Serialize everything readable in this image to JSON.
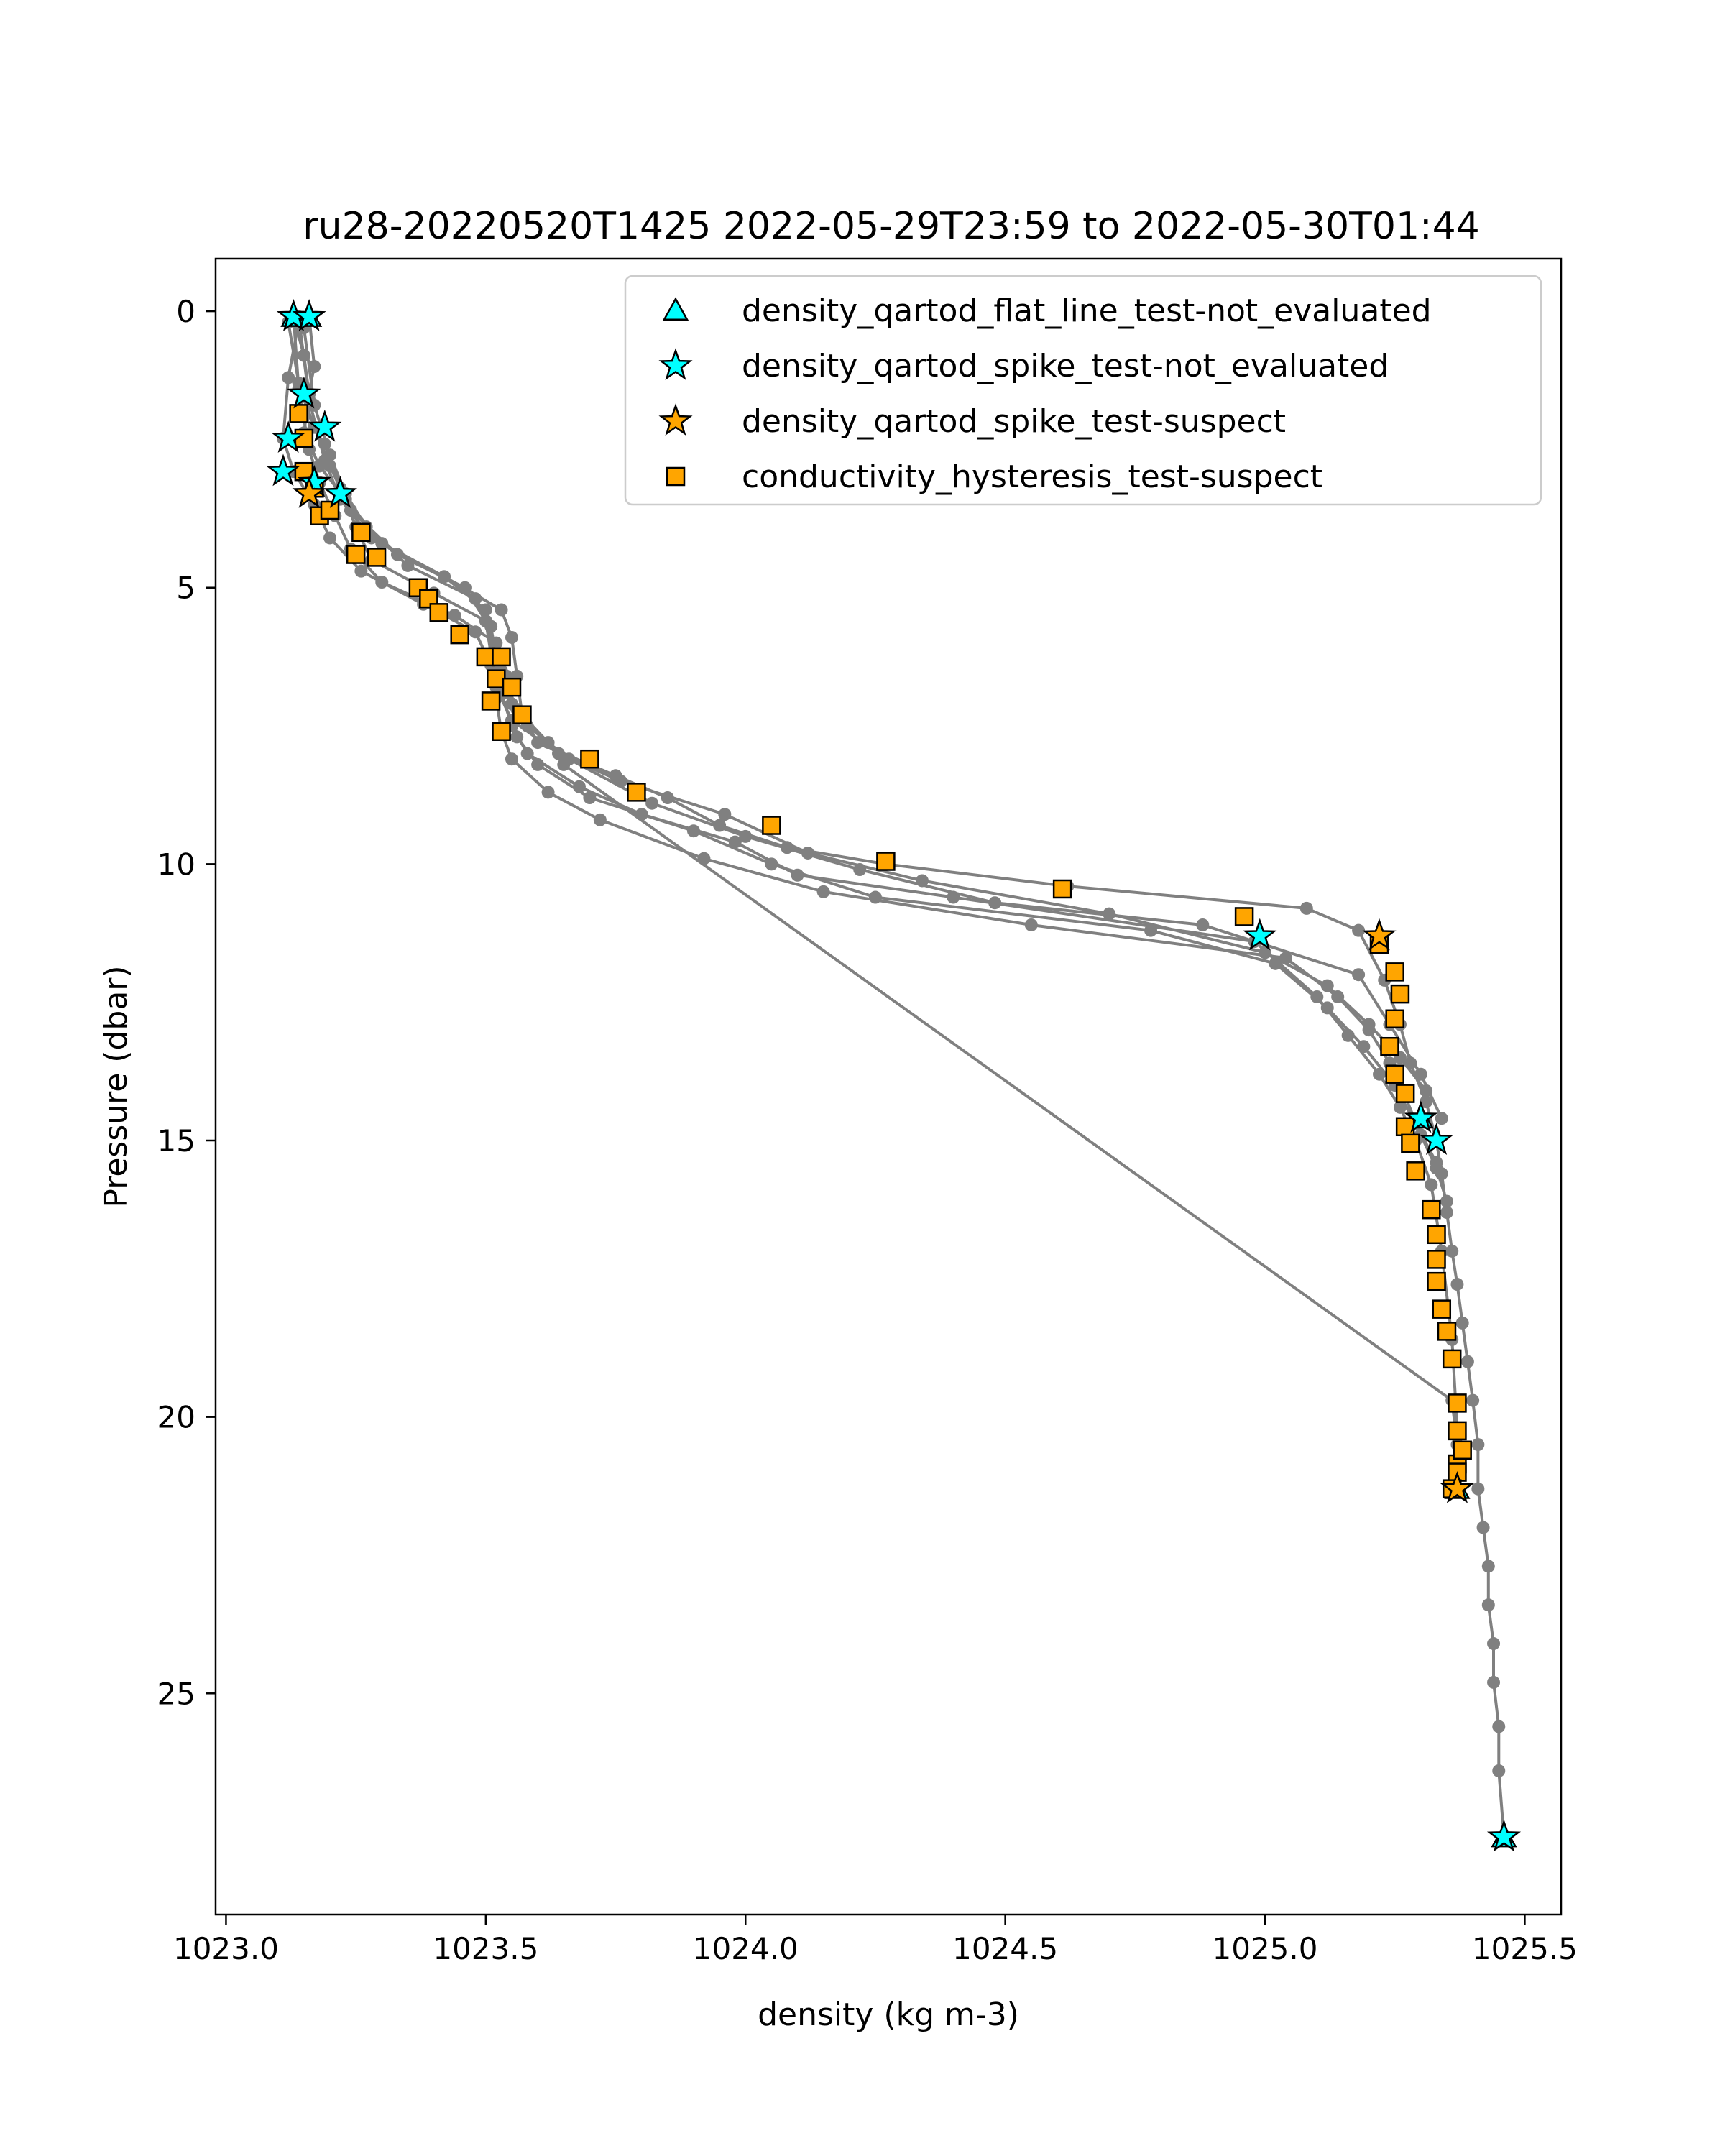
{
  "chart_data": {
    "type": "scatter",
    "title": "ru28-20220520T1425 2022-05-29T23:59 to 2022-05-30T01:44",
    "xlabel": "density (kg m-3)",
    "ylabel": "Pressure (dbar)",
    "xlim": [
      1022.98,
      1025.57
    ],
    "ylim": [
      29.0,
      -0.95
    ],
    "y_inverted": true,
    "grid": false,
    "legend_position": "top-right",
    "x_ticks": [
      1023.0,
      1023.5,
      1024.0,
      1024.5,
      1025.0,
      1025.5
    ],
    "x_tick_labels": [
      "1023.0",
      "1023.5",
      "1024.0",
      "1024.5",
      "1025.0",
      "1025.5"
    ],
    "y_ticks": [
      0,
      5,
      10,
      15,
      20,
      25
    ],
    "y_tick_labels": [
      "0",
      "5",
      "10",
      "15",
      "20",
      "25"
    ],
    "colors": {
      "profile_line": "#808080",
      "flat_line_not_evaluated": "#00FFFF",
      "spike_not_evaluated": "#00FFFF",
      "spike_suspect": "#FFA500",
      "hysteresis_suspect": "#FFA500",
      "marker_edge": "#000000"
    },
    "profiles": [
      {
        "x": [
          1023.13,
          1023.15,
          1023.16,
          1023.15,
          1023.18,
          1023.23,
          1023.3,
          1023.42,
          1023.53,
          1023.55,
          1023.56,
          1023.57,
          1023.6,
          1023.75,
          1023.85,
          1023.95,
          1024.08,
          1024.27,
          1024.62,
          1025.08,
          1025.18,
          1025.23,
          1025.26,
          1025.28,
          1025.31,
          1025.33,
          1025.34,
          1025.35,
          1025.36,
          1025.37,
          1025.38,
          1025.39,
          1025.4,
          1025.41,
          1025.41,
          1025.42,
          1025.43,
          1025.43,
          1025.44,
          1025.44,
          1025.45,
          1025.45,
          1025.46
        ],
        "y": [
          0.1,
          0.8,
          1.5,
          2.2,
          2.8,
          3.4,
          4.2,
          4.8,
          5.4,
          5.9,
          6.6,
          7.3,
          7.8,
          8.4,
          8.8,
          9.3,
          9.7,
          10.0,
          10.4,
          10.8,
          11.2,
          12.1,
          12.9,
          13.6,
          14.3,
          15.0,
          15.6,
          16.3,
          17.0,
          17.6,
          18.3,
          19.0,
          19.7,
          20.5,
          21.3,
          22.0,
          22.7,
          23.4,
          24.1,
          24.8,
          25.6,
          26.4,
          27.6
        ]
      },
      {
        "x": [
          1023.16,
          1023.17,
          1023.15,
          1023.19,
          1023.22,
          1023.25,
          1023.28,
          1023.4,
          1023.5,
          1023.52,
          1023.53,
          1023.55,
          1023.58,
          1023.68,
          1023.8,
          1023.98,
          1024.1,
          1024.4,
          1024.98,
          1025.1,
          1025.16,
          1025.22,
          1025.26,
          1025.29,
          1025.32,
          1025.34,
          1025.36,
          1025.37,
          1025.37
        ],
        "y": [
          0.1,
          1.0,
          1.9,
          2.4,
          3.2,
          3.9,
          4.5,
          5.1,
          5.6,
          6.3,
          6.9,
          7.5,
          8.0,
          8.6,
          9.1,
          9.6,
          10.2,
          10.6,
          11.4,
          12.4,
          13.1,
          13.8,
          14.4,
          15.0,
          15.8,
          17.0,
          18.6,
          20.2,
          21.3
        ]
      },
      {
        "x": [
          1023.14,
          1023.12,
          1023.11,
          1023.13,
          1023.17,
          1023.2,
          1023.26,
          1023.38,
          1023.48,
          1023.51,
          1023.52,
          1023.53,
          1023.55,
          1023.62,
          1023.72,
          1023.92,
          1024.15,
          1024.55,
          1025.04,
          1025.14,
          1025.2,
          1025.24,
          1025.27,
          1025.3,
          1025.33,
          1025.35
        ],
        "y": [
          0.2,
          1.2,
          2.3,
          2.9,
          3.5,
          4.1,
          4.7,
          5.3,
          5.8,
          6.4,
          7.0,
          7.6,
          8.1,
          8.7,
          9.2,
          9.9,
          10.5,
          11.1,
          11.7,
          12.4,
          13.0,
          13.6,
          14.2,
          14.9,
          15.5,
          16.1
        ]
      },
      {
        "x": [
          1023.13,
          1023.14,
          1023.16,
          1023.18,
          1023.21,
          1023.24,
          1023.3,
          1023.44,
          1023.52,
          1023.54,
          1023.55,
          1023.56,
          1023.6,
          1023.7,
          1023.9,
          1024.05,
          1024.25,
          1024.78,
          1025.02,
          1025.12,
          1025.19,
          1025.25,
          1025.29,
          1025.33
        ],
        "y": [
          0.1,
          1.4,
          2.5,
          3.1,
          3.7,
          4.3,
          4.9,
          5.5,
          6.0,
          6.6,
          7.1,
          7.7,
          8.2,
          8.8,
          9.4,
          10.0,
          10.6,
          11.2,
          11.8,
          12.6,
          13.3,
          14.0,
          14.7,
          15.4
        ]
      },
      {
        "x": [
          1023.15,
          1023.17,
          1023.2,
          1023.23,
          1023.27,
          1023.35,
          1023.48,
          1023.51,
          1023.52,
          1023.54,
          1023.58,
          1023.66,
          1023.82,
          1024.0,
          1024.22,
          1024.48,
          1024.88,
          1025.18,
          1025.24,
          1025.3,
          1025.34
        ],
        "y": [
          0.3,
          1.7,
          2.6,
          3.3,
          3.9,
          4.6,
          5.2,
          5.7,
          6.3,
          6.9,
          7.5,
          8.1,
          8.9,
          9.5,
          10.1,
          10.7,
          11.1,
          12.0,
          12.9,
          13.8,
          14.6
        ]
      },
      {
        "x": [
          1023.12,
          1023.14,
          1023.17,
          1023.2,
          1023.24,
          1023.33,
          1023.46,
          1023.5,
          1023.51,
          1023.52,
          1023.55,
          1023.64,
          1023.76,
          1023.96,
          1024.12,
          1024.34,
          1024.7,
          1025.0,
          1025.12,
          1025.2,
          1025.26,
          1025.31
        ],
        "y": [
          0.2,
          1.3,
          2.1,
          2.8,
          3.6,
          4.4,
          5.0,
          5.6,
          6.2,
          6.8,
          7.4,
          8.0,
          8.5,
          9.1,
          9.8,
          10.3,
          10.9,
          11.6,
          12.2,
          12.9,
          13.5,
          14.1
        ]
      },
      {
        "x": [
          1023.14,
          1023.16,
          1023.19,
          1023.22,
          1023.28,
          1023.42,
          1023.5,
          1023.53,
          1023.56,
          1023.62,
          1023.65,
          1025.36,
          1025.37
        ],
        "y": [
          0.1,
          1.6,
          2.7,
          3.4,
          4.1,
          4.8,
          5.4,
          6.5,
          7.2,
          7.8,
          8.2,
          19.7,
          20.5
        ]
      }
    ],
    "series": [
      {
        "name": "density_qartod_flat_line_test-not_evaluated",
        "marker": "triangle",
        "x": [
          1023.13,
          1023.16,
          1025.46,
          1025.37,
          1025.3
        ],
        "y": [
          0.1,
          0.1,
          27.6,
          21.3,
          14.6
        ]
      },
      {
        "name": "density_qartod_spike_test-not_evaluated",
        "marker": "star",
        "x": [
          1023.13,
          1023.16,
          1023.15,
          1023.19,
          1023.12,
          1023.11,
          1023.22,
          1023.17,
          1024.99,
          1025.33,
          1025.3,
          1025.46
        ],
        "y": [
          0.1,
          0.1,
          1.5,
          2.1,
          2.3,
          2.9,
          3.3,
          3.1,
          11.3,
          15.0,
          14.6,
          27.6
        ]
      },
      {
        "name": "density_qartod_spike_test-suspect",
        "marker": "star",
        "x": [
          1025.22,
          1025.37,
          1023.16
        ],
        "y": [
          11.3,
          21.3,
          3.3
        ]
      },
      {
        "name": "conductivity_hysteresis_test-suspect",
        "marker": "square",
        "x": [
          1023.14,
          1023.15,
          1023.15,
          1023.17,
          1023.18,
          1023.2,
          1023.26,
          1023.25,
          1023.29,
          1023.37,
          1023.39,
          1023.41,
          1023.45,
          1023.5,
          1023.53,
          1023.52,
          1023.55,
          1023.51,
          1023.57,
          1023.53,
          1023.7,
          1023.79,
          1024.05,
          1024.27,
          1024.61,
          1024.96,
          1025.22,
          1025.25,
          1025.26,
          1025.25,
          1025.24,
          1025.25,
          1025.27,
          1025.27,
          1025.28,
          1025.29,
          1025.32,
          1025.33,
          1025.33,
          1025.33,
          1025.34,
          1025.35,
          1025.36,
          1025.37,
          1025.37,
          1025.37,
          1025.38,
          1025.37,
          1025.36
        ],
        "y": [
          1.85,
          2.3,
          2.9,
          3.2,
          3.7,
          3.6,
          4.0,
          4.4,
          4.45,
          5.0,
          5.2,
          5.45,
          5.85,
          6.25,
          6.25,
          6.65,
          6.8,
          7.05,
          7.3,
          7.6,
          8.1,
          8.7,
          9.3,
          9.95,
          10.45,
          10.95,
          11.45,
          11.95,
          12.35,
          12.8,
          13.3,
          13.8,
          14.15,
          14.75,
          15.05,
          15.55,
          16.25,
          16.7,
          17.15,
          17.55,
          18.05,
          18.45,
          18.95,
          19.75,
          20.25,
          20.85,
          20.6,
          21.0,
          21.3
        ]
      }
    ]
  }
}
